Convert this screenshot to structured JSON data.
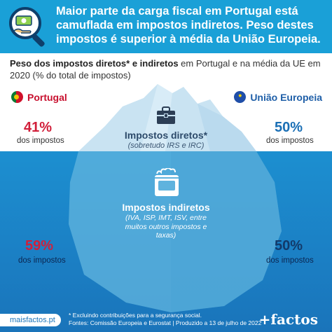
{
  "header": {
    "title": "Maior parte da carga fiscal em Portugal está camuflada em impostos indiretos. Peso destes impostos é superior à média da União Europeia.",
    "icon": "magnifier-money-icon"
  },
  "subtitle": {
    "bold": "Peso dos impostos diretos* e indiretos",
    "rest": " em Portugal e na média da UE em 2020 (% do total de impostos)"
  },
  "countries": {
    "portugal": "Portugal",
    "eu": "União Europeia"
  },
  "direct": {
    "title": "Impostos diretos*",
    "subtitle": "(sobretudo IRS e IRC)",
    "portugal_value": "41%",
    "eu_value": "50%",
    "label": "dos impostos"
  },
  "indirect": {
    "title": "Impostos indiretos",
    "subtitle": "(IVA, ISP, IMT, ISV, entre muitos outros impostos e taxas)",
    "portugal_value": "59%",
    "eu_value": "50%",
    "label": "dos impostos"
  },
  "icons": [
    "briefcase-icon",
    "shopping-bag-icon",
    "portugal-flag-icon",
    "eu-flag-icon"
  ],
  "footer": {
    "link": "maisfactos.pt",
    "note1": "* Excluindo contribuições para a segurança social.",
    "note2": "Fontes: Comissão Europeia e Eurostat | Produzido a 13 de julho de 2022",
    "brand": "+factos"
  },
  "colors": {
    "header": "#1aa0d7",
    "portugal_red": "#d11f3a",
    "eu_blue": "#1a6fb5",
    "sea": "#1b7fc4"
  }
}
